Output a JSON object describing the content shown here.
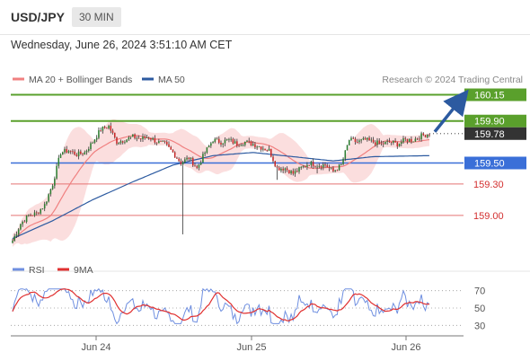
{
  "header": {
    "symbol": "USD/JPY",
    "timeframe": "30 MIN",
    "datetime": "Wednesday, June 26, 2024 3:51:10 AM CET"
  },
  "chart_data": [
    {
      "type": "candlestick",
      "legend": [
        {
          "name": "MA 20 + Bollinger Bands",
          "color": "#f08080"
        },
        {
          "name": "MA 50",
          "color": "#2c5aa0"
        }
      ],
      "source": "Research © 2024 Trading Central",
      "ylim": [
        158.64,
        160.3
      ],
      "x_ticks": [
        "Jun 24",
        "Jun 25",
        "Jun 26"
      ],
      "levels": [
        {
          "value": 160.15,
          "label": "160.15",
          "type": "resistance",
          "color": "#5aa02c"
        },
        {
          "value": 159.9,
          "label": "159.90",
          "type": "resistance",
          "color": "#5aa02c"
        },
        {
          "value": 159.78,
          "label": "159.78",
          "type": "last",
          "color": "#333333"
        },
        {
          "value": 159.5,
          "label": "159.50",
          "type": "pivot",
          "color": "#3a6fd8"
        },
        {
          "value": 159.3,
          "label": "159.30",
          "type": "support",
          "color": "#e57373"
        },
        {
          "value": 159.0,
          "label": "159.00",
          "type": "support",
          "color": "#e57373"
        }
      ],
      "anchors": [
        [
          0,
          158.76
        ],
        [
          4,
          158.92
        ],
        [
          8,
          159.0
        ],
        [
          12,
          159.02
        ],
        [
          16,
          159.1
        ],
        [
          20,
          159.3
        ],
        [
          24,
          159.6
        ],
        [
          28,
          159.62
        ],
        [
          32,
          159.58
        ],
        [
          36,
          159.6
        ],
        [
          40,
          159.7
        ],
        [
          44,
          159.82
        ],
        [
          48,
          159.85
        ],
        [
          52,
          159.7
        ],
        [
          56,
          159.72
        ],
        [
          60,
          159.75
        ],
        [
          64,
          159.73
        ],
        [
          68,
          159.75
        ],
        [
          72,
          159.7
        ],
        [
          76,
          159.68
        ],
        [
          80,
          159.6
        ],
        [
          84,
          159.5
        ],
        [
          88,
          159.55
        ],
        [
          92,
          159.45
        ],
        [
          96,
          159.6
        ],
        [
          100,
          159.72
        ],
        [
          104,
          159.7
        ],
        [
          108,
          159.72
        ],
        [
          112,
          159.68
        ],
        [
          116,
          159.7
        ],
        [
          120,
          159.68
        ],
        [
          124,
          159.65
        ],
        [
          128,
          159.62
        ],
        [
          132,
          159.45
        ],
        [
          136,
          159.45
        ],
        [
          140,
          159.4
        ],
        [
          144,
          159.45
        ],
        [
          148,
          159.5
        ],
        [
          152,
          159.48
        ],
        [
          156,
          159.48
        ],
        [
          160,
          159.42
        ],
        [
          164,
          159.48
        ],
        [
          168,
          159.72
        ],
        [
          172,
          159.7
        ],
        [
          176,
          159.72
        ],
        [
          180,
          159.7
        ],
        [
          184,
          159.68
        ],
        [
          188,
          159.7
        ],
        [
          192,
          159.68
        ],
        [
          196,
          159.72
        ],
        [
          200,
          159.72
        ],
        [
          204,
          159.76
        ],
        [
          208,
          159.78
        ]
      ],
      "spikes": [
        {
          "i": 85,
          "low": 158.82
        },
        {
          "i": 132,
          "low": 159.34
        },
        {
          "i": 152,
          "low": 159.4
        }
      ],
      "ma50": [
        [
          0,
          158.78
        ],
        [
          20,
          158.95
        ],
        [
          40,
          159.15
        ],
        [
          60,
          159.32
        ],
        [
          80,
          159.48
        ],
        [
          100,
          159.57
        ],
        [
          120,
          159.6
        ],
        [
          140,
          159.56
        ],
        [
          160,
          159.52
        ],
        [
          180,
          159.56
        ],
        [
          208,
          159.57
        ]
      ]
    },
    {
      "type": "line",
      "legend": [
        {
          "name": "RSI",
          "color": "#6f8fe0"
        },
        {
          "name": "9MA",
          "color": "#e03030"
        }
      ],
      "ylim": [
        20,
        80
      ],
      "y_ticks": [
        {
          "value": 70,
          "label": "70"
        },
        {
          "value": 50,
          "label": "50"
        },
        {
          "value": 30,
          "label": "30"
        }
      ]
    }
  ]
}
